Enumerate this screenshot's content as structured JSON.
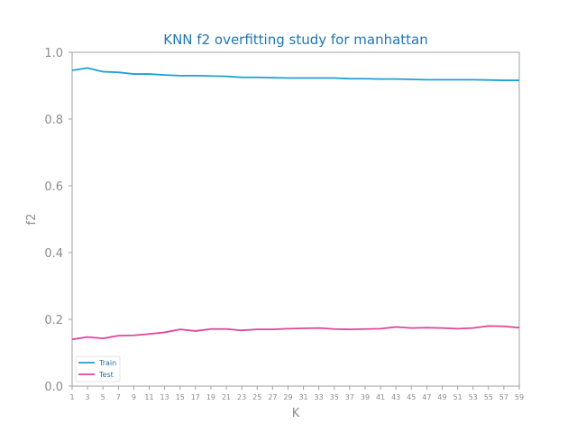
{
  "chart_data": {
    "type": "line",
    "title": "KNN f2 overfitting study for manhattan",
    "xlabel": "K",
    "ylabel": "f2",
    "xlim": [
      1,
      59
    ],
    "ylim": [
      0.0,
      1.0
    ],
    "x_ticks": [
      "1",
      "3",
      "5",
      "7",
      "9",
      "11",
      "13",
      "15",
      "17",
      "19",
      "21",
      "23",
      "25",
      "27",
      "29",
      "31",
      "33",
      "35",
      "37",
      "39",
      "41",
      "43",
      "45",
      "47",
      "49",
      "51",
      "53",
      "55",
      "57",
      "59"
    ],
    "y_ticks": [
      "0.0",
      "0.2",
      "0.4",
      "0.6",
      "0.8",
      "1.0"
    ],
    "grid": false,
    "legend_position": "lower-left",
    "x": [
      1,
      3,
      5,
      7,
      9,
      11,
      13,
      15,
      17,
      19,
      21,
      23,
      25,
      27,
      29,
      31,
      33,
      35,
      37,
      39,
      41,
      43,
      45,
      47,
      49,
      51,
      53,
      55,
      57,
      59
    ],
    "series": [
      {
        "name": "Train",
        "color": "#1f9fd6",
        "values": [
          0.946,
          0.953,
          0.942,
          0.94,
          0.935,
          0.935,
          0.932,
          0.93,
          0.93,
          0.929,
          0.928,
          0.925,
          0.925,
          0.924,
          0.923,
          0.923,
          0.923,
          0.923,
          0.921,
          0.921,
          0.92,
          0.92,
          0.919,
          0.918,
          0.918,
          0.918,
          0.918,
          0.917,
          0.916,
          0.916
        ]
      },
      {
        "name": "Test",
        "color": "#e0449b",
        "values": [
          0.14,
          0.147,
          0.143,
          0.151,
          0.152,
          0.156,
          0.161,
          0.17,
          0.165,
          0.171,
          0.171,
          0.167,
          0.17,
          0.17,
          0.172,
          0.173,
          0.174,
          0.171,
          0.17,
          0.171,
          0.172,
          0.177,
          0.174,
          0.175,
          0.174,
          0.172,
          0.174,
          0.18,
          0.179,
          0.175
        ]
      }
    ]
  }
}
